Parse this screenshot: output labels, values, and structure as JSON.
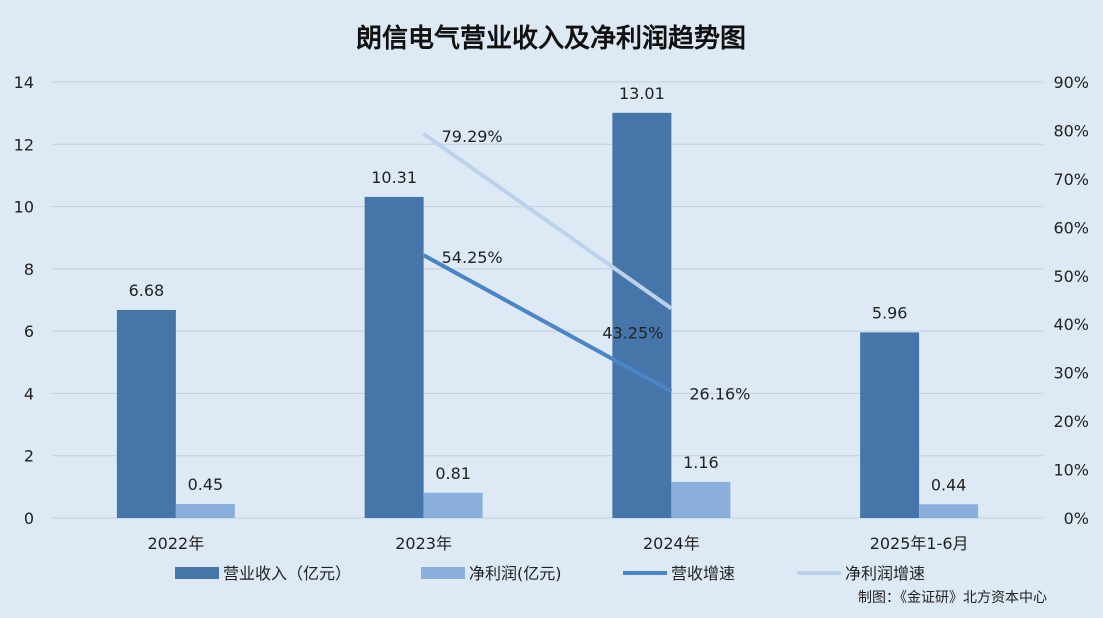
{
  "chart_data": {
    "type": "bar",
    "title": "朗信电气营业收入及净利润趋势图",
    "categories": [
      "2022年",
      "2023年",
      "2024年",
      "2025年1-6月"
    ],
    "series": [
      {
        "name": "营业收入（亿元）",
        "kind": "bar",
        "axis": "left",
        "color": "#4676a9",
        "values": [
          6.68,
          10.31,
          13.01,
          5.96
        ],
        "labels": [
          "6.68",
          "10.31",
          "13.01",
          "5.96"
        ]
      },
      {
        "name": "净利润(亿元)",
        "kind": "bar",
        "axis": "left",
        "color": "#8aafdc",
        "values": [
          0.45,
          0.81,
          1.16,
          0.44
        ],
        "labels": [
          "0.45",
          "0.81",
          "1.16",
          "0.44"
        ]
      },
      {
        "name": "营收增速",
        "kind": "line",
        "axis": "right",
        "color": "#4a86c5",
        "values": [
          null,
          54.25,
          26.16,
          null
        ],
        "labels": [
          null,
          "54.25%",
          "26.16%",
          null
        ]
      },
      {
        "name": "净利润增速",
        "kind": "line",
        "axis": "right",
        "color": "#bcd2ea",
        "values": [
          null,
          79.29,
          43.25,
          null
        ],
        "labels": [
          null,
          "79.29%",
          "43.25%",
          null
        ]
      }
    ],
    "y_left": {
      "min": 0,
      "max": 14,
      "step": 2,
      "ticks": [
        "0",
        "2",
        "4",
        "6",
        "8",
        "10",
        "12",
        "14"
      ]
    },
    "y_right": {
      "min": 0,
      "max": 90,
      "step": 10,
      "ticks": [
        "0%",
        "10%",
        "20%",
        "30%",
        "40%",
        "50%",
        "60%",
        "70%",
        "80%",
        "90%"
      ]
    },
    "grid": true,
    "legend_position": "bottom"
  },
  "credit": "制图：《金证研》北方资本中心"
}
